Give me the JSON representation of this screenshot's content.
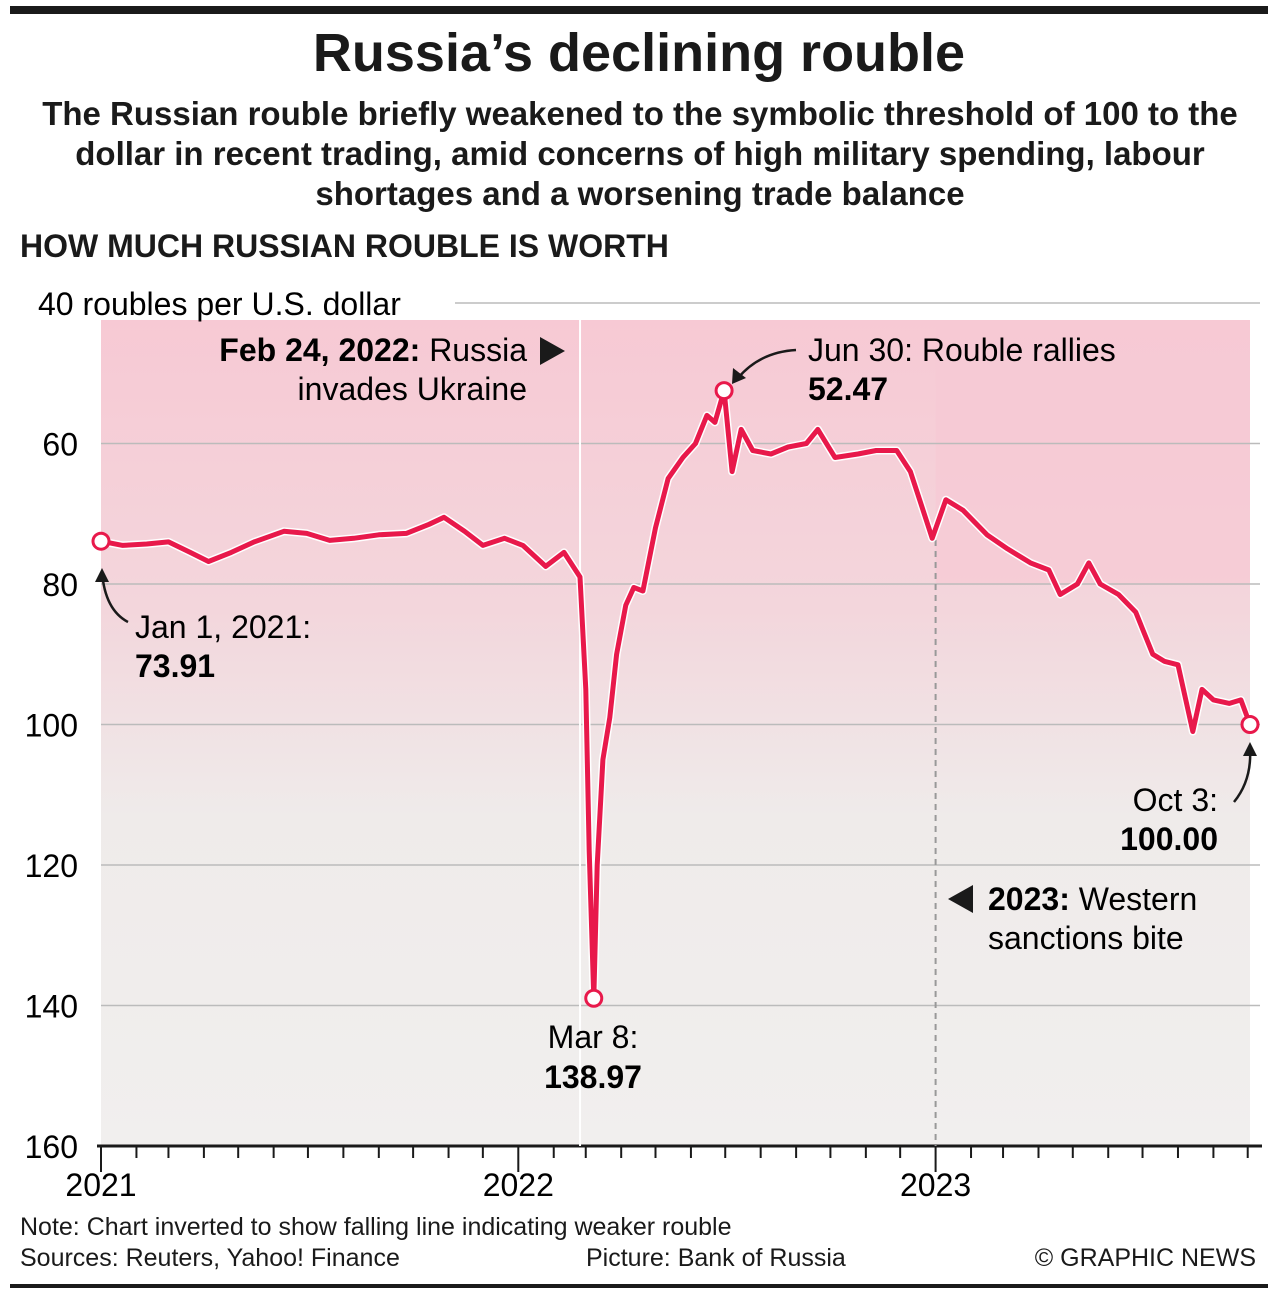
{
  "title": "Russia’s declining rouble",
  "subtitle": "The Russian rouble briefly weakened to the symbolic threshold of 100 to the dollar in recent trading, amid concerns of high military spending, labour shortages and a worsening trade balance",
  "section_title": "HOW MUCH RUSSIAN ROUBLE IS WORTH",
  "note": "Note: Chart inverted to show falling line indicating weaker rouble",
  "sources": "Sources: Reuters, Yahoo! Finance",
  "picture": "Picture: Bank of Russia",
  "credit": "© GRAPHIC NEWS",
  "colors": {
    "line": "#e8194b",
    "shade": "#f7c9d4"
  },
  "chart_data": {
    "type": "line",
    "ylabel": "roubles per U.S. dollar",
    "yaxis_inverted": true,
    "ylim": [
      40,
      160
    ],
    "yticks": [
      40,
      60,
      80,
      100,
      120,
      140,
      160
    ],
    "ytick_labels": [
      "40 roubles per U.S. dollar",
      "60",
      "80",
      "100",
      "120",
      "140",
      "160"
    ],
    "xlim": [
      "2021-01-01",
      "2023-10-03"
    ],
    "xtick_labels": [
      "2021",
      "2022",
      "2023"
    ],
    "minor_ticks": "monthly",
    "grid": true,
    "series": [
      {
        "points": [
          [
            "2021-01-01",
            73.91
          ],
          [
            "2021-01-20",
            74.5
          ],
          [
            "2021-02-10",
            74.3
          ],
          [
            "2021-03-01",
            74.0
          ],
          [
            "2021-03-20",
            75.5
          ],
          [
            "2021-04-05",
            76.8
          ],
          [
            "2021-04-25",
            75.5
          ],
          [
            "2021-05-15",
            74.0
          ],
          [
            "2021-06-10",
            72.5
          ],
          [
            "2021-06-30",
            72.8
          ],
          [
            "2021-07-20",
            73.8
          ],
          [
            "2021-08-10",
            73.5
          ],
          [
            "2021-09-01",
            73.0
          ],
          [
            "2021-09-25",
            72.8
          ],
          [
            "2021-10-15",
            71.5
          ],
          [
            "2021-10-28",
            70.5
          ],
          [
            "2021-11-15",
            72.5
          ],
          [
            "2021-12-01",
            74.5
          ],
          [
            "2021-12-20",
            73.5
          ],
          [
            "2022-01-05",
            74.5
          ],
          [
            "2022-01-25",
            77.5
          ],
          [
            "2022-02-10",
            75.5
          ],
          [
            "2022-02-24",
            79.0
          ],
          [
            "2022-03-01",
            95.0
          ],
          [
            "2022-03-04",
            118.0
          ],
          [
            "2022-03-08",
            138.97
          ],
          [
            "2022-03-11",
            120.0
          ],
          [
            "2022-03-16",
            105.0
          ],
          [
            "2022-03-22",
            99.0
          ],
          [
            "2022-03-28",
            90.0
          ],
          [
            "2022-04-05",
            83.0
          ],
          [
            "2022-04-12",
            80.5
          ],
          [
            "2022-04-20",
            81.0
          ],
          [
            "2022-05-01",
            72.0
          ],
          [
            "2022-05-12",
            65.0
          ],
          [
            "2022-05-25",
            62.0
          ],
          [
            "2022-06-05",
            60.0
          ],
          [
            "2022-06-15",
            56.0
          ],
          [
            "2022-06-22",
            57.0
          ],
          [
            "2022-06-30",
            52.47
          ],
          [
            "2022-07-07",
            64.0
          ],
          [
            "2022-07-15",
            58.0
          ],
          [
            "2022-07-25",
            61.0
          ],
          [
            "2022-08-10",
            61.5
          ],
          [
            "2022-08-25",
            60.5
          ],
          [
            "2022-09-10",
            60.0
          ],
          [
            "2022-09-20",
            58.0
          ],
          [
            "2022-10-05",
            62.0
          ],
          [
            "2022-10-25",
            61.5
          ],
          [
            "2022-11-10",
            61.0
          ],
          [
            "2022-11-28",
            61.0
          ],
          [
            "2022-12-10",
            64.0
          ],
          [
            "2022-12-20",
            69.0
          ],
          [
            "2022-12-29",
            73.5
          ],
          [
            "2023-01-10",
            68.0
          ],
          [
            "2023-01-25",
            69.5
          ],
          [
            "2023-02-15",
            73.0
          ],
          [
            "2023-03-05",
            75.0
          ],
          [
            "2023-03-25",
            77.0
          ],
          [
            "2023-04-10",
            78.0
          ],
          [
            "2023-04-20",
            81.5
          ],
          [
            "2023-05-05",
            80.0
          ],
          [
            "2023-05-15",
            77.0
          ],
          [
            "2023-05-25",
            80.0
          ],
          [
            "2023-06-10",
            81.5
          ],
          [
            "2023-06-25",
            84.0
          ],
          [
            "2023-07-10",
            90.0
          ],
          [
            "2023-07-20",
            91.0
          ],
          [
            "2023-08-01",
            91.5
          ],
          [
            "2023-08-14",
            101.0
          ],
          [
            "2023-08-22",
            95.0
          ],
          [
            "2023-09-01",
            96.5
          ],
          [
            "2023-09-15",
            97.0
          ],
          [
            "2023-09-25",
            96.5
          ],
          [
            "2023-10-03",
            100.0
          ]
        ]
      }
    ],
    "annotations": [
      {
        "date": "2021-01-01",
        "value": 73.91,
        "label": "Jan 1, 2021:",
        "value_text": "73.91"
      },
      {
        "date": "2022-03-08",
        "value": 138.97,
        "label": "Mar 8:",
        "value_text": "138.97"
      },
      {
        "date": "2022-06-30",
        "value": 52.47,
        "label": "Jun 30: Rouble rallies",
        "value_text": "52.47"
      },
      {
        "date": "2023-10-03",
        "value": 100.0,
        "label": "Oct 3:",
        "value_text": "100.00"
      }
    ],
    "events": [
      {
        "date": "2022-02-24",
        "bold": "Feb 24, 2022:",
        "text1": " Russia",
        "text2": "invades Ukraine"
      },
      {
        "date": "2023-01-01",
        "bold": "2023:",
        "text1": " Western",
        "text2": "sanctions bite"
      }
    ]
  }
}
